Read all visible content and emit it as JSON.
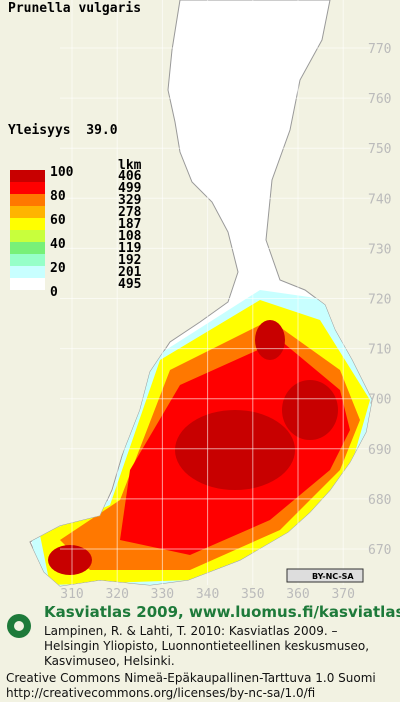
{
  "title": "Prunella vulgaris",
  "frequency": "Yleisyys  39.0",
  "legend": {
    "count_header": "lkm",
    "scale_labels": [
      "100",
      "80",
      "60",
      "40",
      "20",
      "0"
    ],
    "classes": [
      {
        "color": "#c80000",
        "count": "406"
      },
      {
        "color": "#ff0000",
        "count": "499"
      },
      {
        "color": "#ff7800",
        "count": "329"
      },
      {
        "color": "#ffb400",
        "count": "278"
      },
      {
        "color": "#ffff00",
        "count": "187"
      },
      {
        "color": "#c8ff3c",
        "count": "108"
      },
      {
        "color": "#78f078",
        "count": "119"
      },
      {
        "color": "#96ffc8",
        "count": "192"
      },
      {
        "color": "#c8ffff",
        "count": "201"
      },
      {
        "color": "#ffffff",
        "count": "495"
      }
    ]
  },
  "grid": {
    "northing": [
      "770",
      "760",
      "750",
      "740",
      "730",
      "720",
      "710",
      "700",
      "690",
      "680",
      "670"
    ],
    "easting": [
      "310",
      "320",
      "330",
      "340",
      "350",
      "360",
      "370"
    ]
  },
  "license_badge": "BY-NC-SA",
  "footer": {
    "heading": "Kasviatlas 2009, www.luomus.fi/kasviatlas",
    "citation": [
      "Lampinen, R. & Lahti, T. 2010: Kasviatlas 2009. –",
      "Helsingin Yliopisto, Luonnontieteellinen keskusmuseo,",
      "Kasvimuseo, Helsinki."
    ],
    "license": [
      "Creative Commons Nimeä-Epäkaupallinen-Tarttuva 1.0 Suomi",
      "http://creativecommons.org/licenses/by-nc-sa/1.0/fi"
    ]
  }
}
